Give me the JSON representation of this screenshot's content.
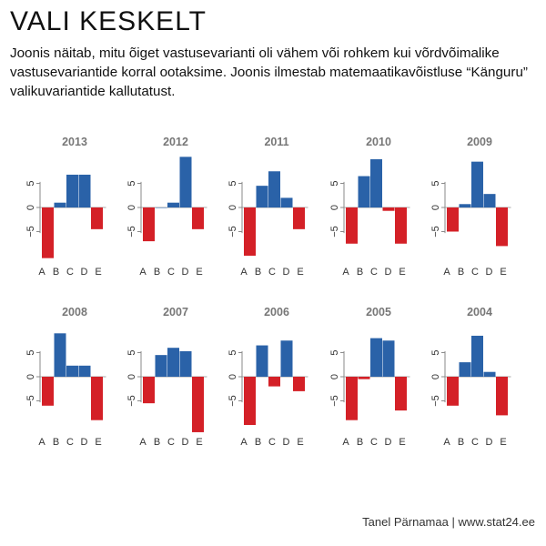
{
  "header": {
    "title": "VALI KESKELT",
    "subtitle": "Joonis näitab, mitu õiget vastusevarianti oli vähem või rohkem kui võrdvõimalike vastusevariantide korral ootaksime. Joonis ilmestab matemaatikavõistluse “Känguru” valikuvariantide kallutatust."
  },
  "footer": {
    "credit": "Tanel Pärnamaa | www.stat24.ee"
  },
  "colors": {
    "positive": "#2a62a8",
    "negative": "#d42027",
    "axis": "#8a8a8a",
    "panel_title": "#777777"
  },
  "chart_data": {
    "type": "bar",
    "categories": [
      "A",
      "B",
      "C",
      "D",
      "E"
    ],
    "yticks": [
      -5,
      0,
      5
    ],
    "ytick_labels": [
      "−5",
      "0",
      "5"
    ],
    "ylim": [
      -11,
      11
    ],
    "panels": [
      {
        "year": "2013",
        "values": [
          -10.5,
          1,
          6.8,
          6.8,
          -4.5
        ]
      },
      {
        "year": "2012",
        "values": [
          -7,
          0,
          1,
          10.5,
          -4.5
        ]
      },
      {
        "year": "2011",
        "values": [
          -10,
          4.5,
          7.5,
          2,
          -4.5
        ]
      },
      {
        "year": "2010",
        "values": [
          -7.5,
          6.5,
          10,
          -0.7,
          -7.5
        ]
      },
      {
        "year": "2009",
        "values": [
          -5,
          0.7,
          9.5,
          2.8,
          -8
        ]
      },
      {
        "year": "2008",
        "values": [
          -6,
          9,
          2.3,
          2.3,
          -9
        ]
      },
      {
        "year": "2007",
        "values": [
          -5.5,
          4.5,
          6,
          5.3,
          -11.5
        ]
      },
      {
        "year": "2006",
        "values": [
          -10,
          6.5,
          -2,
          7.5,
          -3
        ]
      },
      {
        "year": "2005",
        "values": [
          -9,
          -0.5,
          8,
          7.5,
          -7
        ]
      },
      {
        "year": "2004",
        "values": [
          -6,
          3,
          8.5,
          1,
          -8
        ]
      }
    ]
  }
}
